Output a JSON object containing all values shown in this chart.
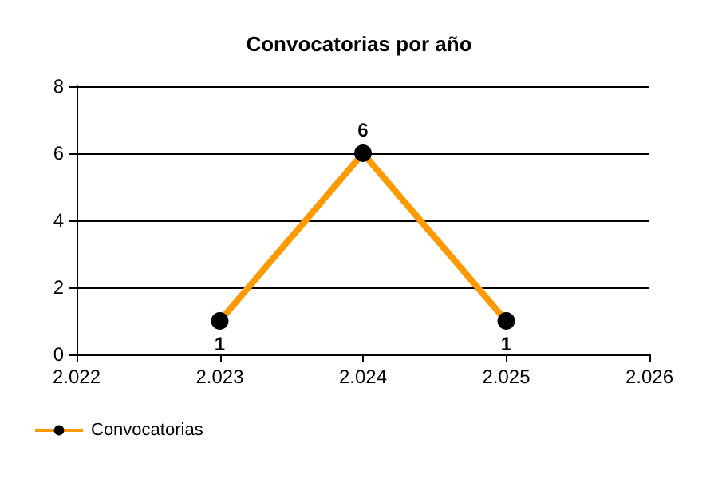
{
  "chart_data": {
    "type": "line",
    "title": "Convocatorias por año",
    "x": [
      2023,
      2024,
      2025
    ],
    "series": [
      {
        "name": "Convocatorias",
        "color": "#ff9900",
        "values": [
          1,
          6,
          1
        ]
      }
    ],
    "xlim": [
      2022,
      2026
    ],
    "xticks": [
      {
        "value": 2022,
        "label": "2.022"
      },
      {
        "value": 2023,
        "label": "2.023"
      },
      {
        "value": 2024,
        "label": "2.024"
      },
      {
        "value": 2025,
        "label": "2.025"
      },
      {
        "value": 2026,
        "label": "2.026"
      }
    ],
    "ylim": [
      0,
      8
    ],
    "yticks": [
      0,
      2,
      4,
      6,
      8
    ],
    "grid": "y",
    "legend": "bottom left",
    "marker": "circle",
    "line_style": "solid",
    "data_labels": true
  }
}
